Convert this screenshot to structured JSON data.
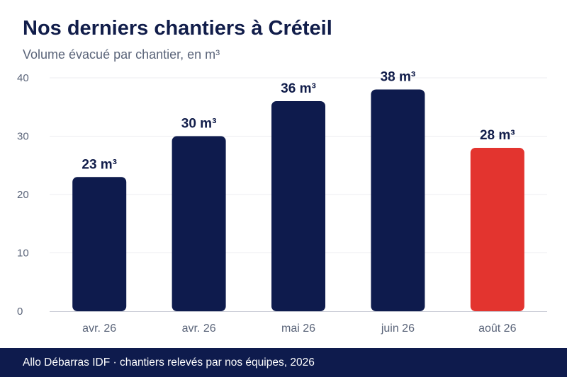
{
  "title": "Nos derniers chantiers à Créteil",
  "subtitle": "Volume évacué par chantier, en m³",
  "footer": "Allo Débarras IDF · chantiers relevés par nos équipes, 2026",
  "colors": {
    "bar": "#0e1b4d",
    "highlight": "#e3342f",
    "title": "#111d4a",
    "axis_text": "#5a6479"
  },
  "chart_data": {
    "type": "bar",
    "categories": [
      "avr. 26",
      "avr. 26",
      "mai 26",
      "juin 26",
      "août 26"
    ],
    "values": [
      23,
      30,
      36,
      38,
      28
    ],
    "data_labels": [
      "23 m³",
      "30 m³",
      "36 m³",
      "38 m³",
      "28 m³"
    ],
    "highlight_index": 4,
    "ylim": [
      0,
      40
    ],
    "yticks": [
      0,
      10,
      20,
      30,
      40
    ],
    "grid": true,
    "unit": "m³"
  }
}
